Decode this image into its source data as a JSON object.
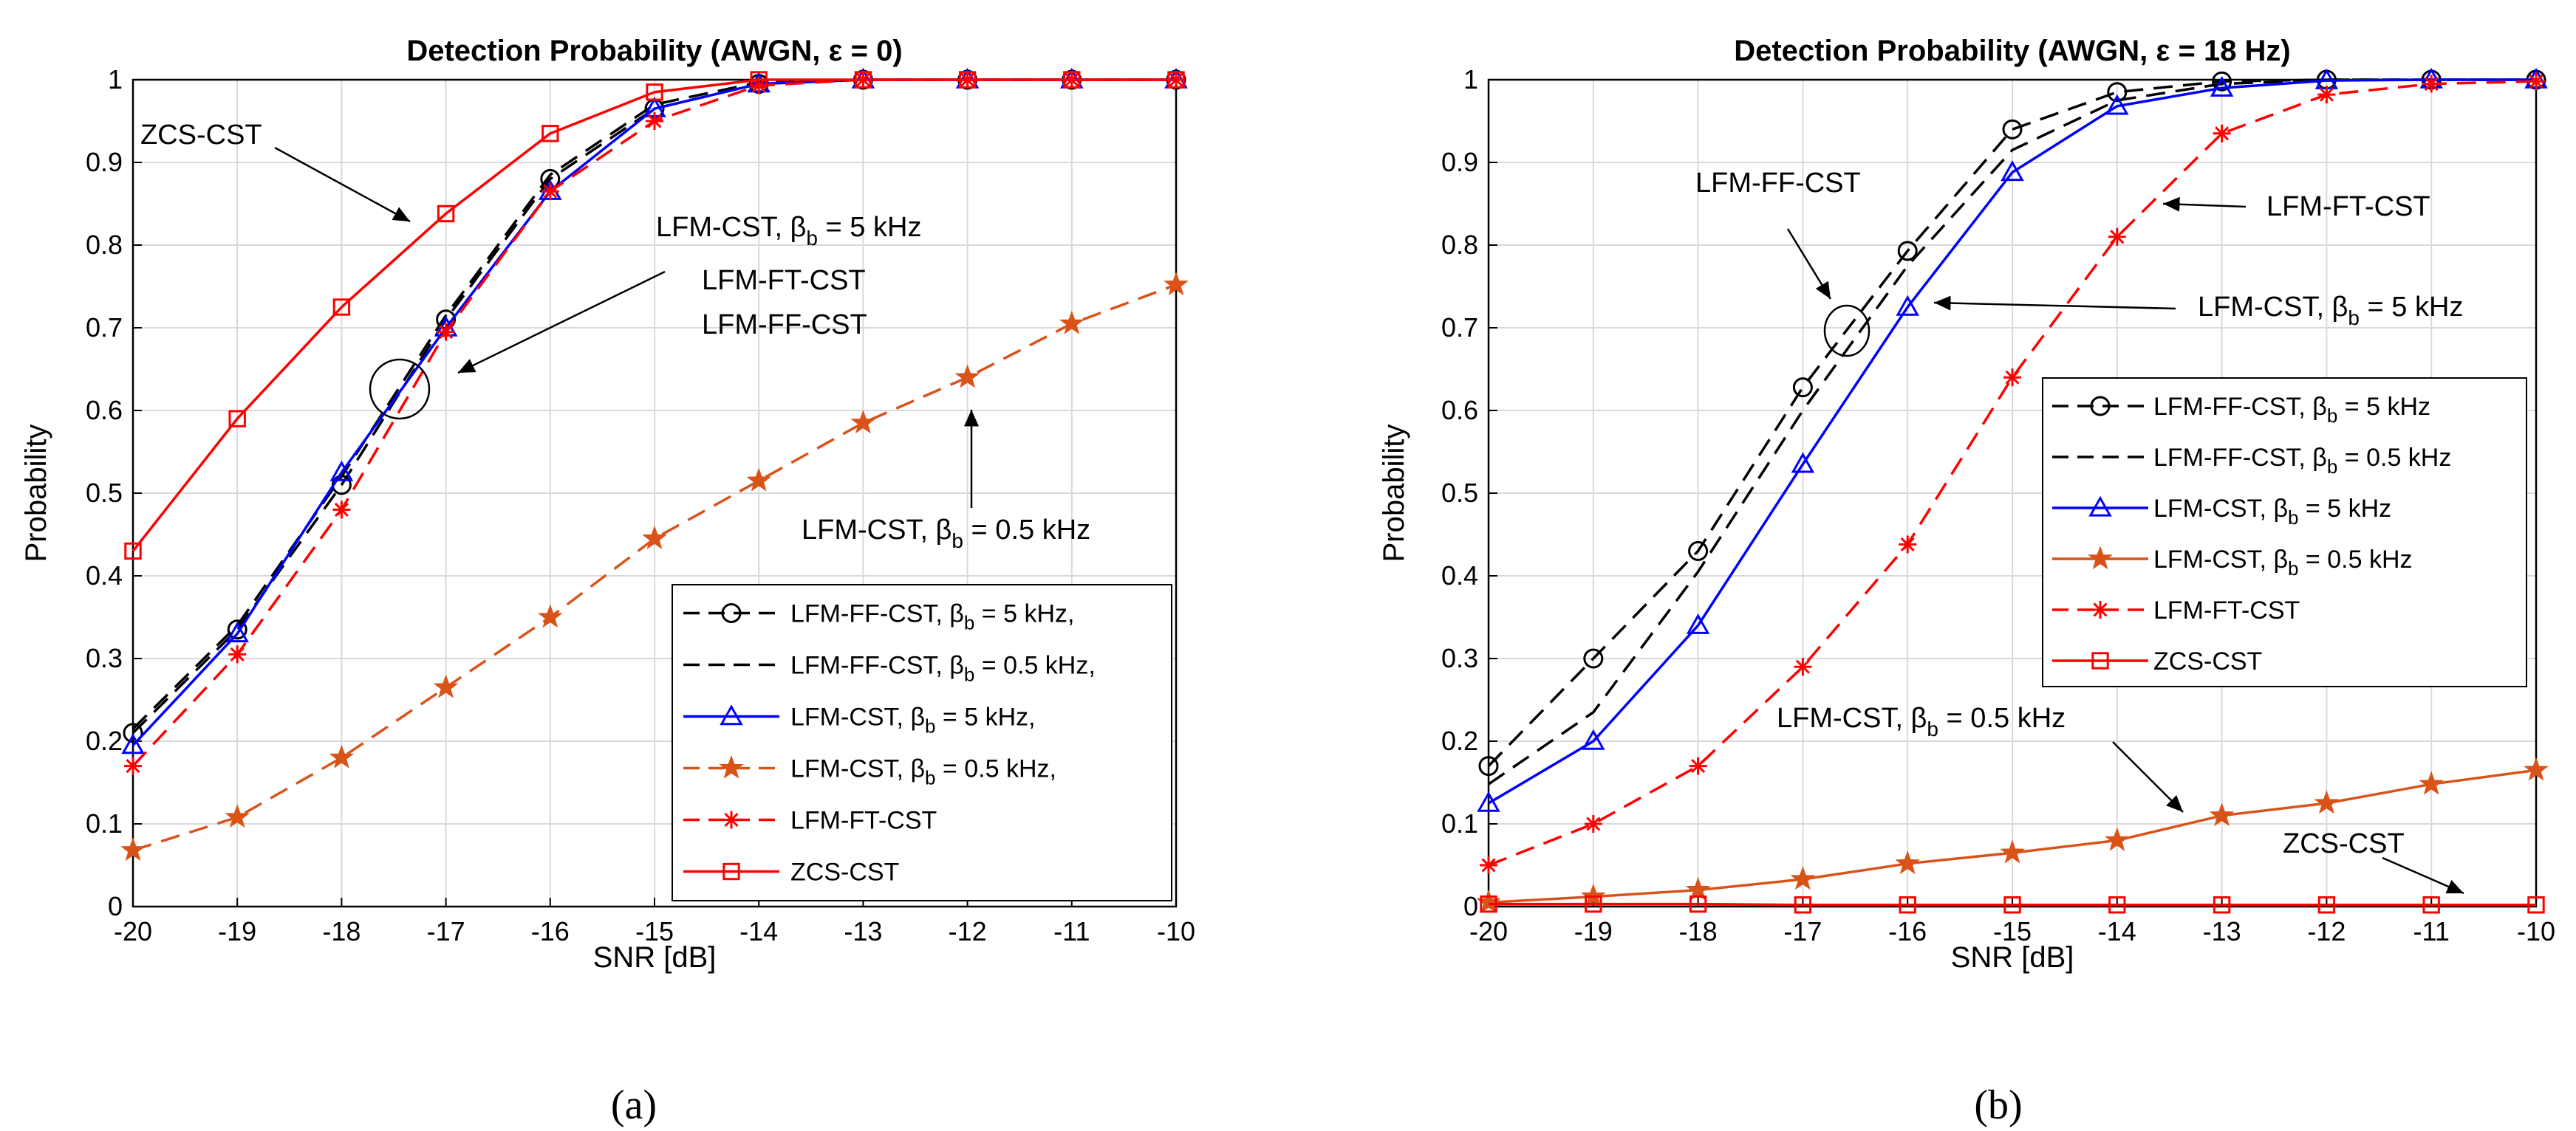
{
  "colors": {
    "black": "#000000",
    "blue": "#0000ff",
    "orange": "#d95319",
    "red": "#ff0000",
    "grid": "#d9d9d9"
  },
  "chart_data": [
    {
      "type": "line",
      "label": "(a)",
      "title": "Detection Probability  (AWGN, ε = 0)",
      "xlabel": "SNR [dB]",
      "ylabel": "Probability",
      "x": [
        -20,
        -19,
        -18,
        -17,
        -16,
        -15,
        -14,
        -13,
        -12,
        -11,
        -10
      ],
      "xlim": [
        -20,
        -10
      ],
      "ylim": [
        0,
        1
      ],
      "xticks": [
        "-20",
        "-19",
        "-18",
        "-17",
        "-16",
        "-15",
        "-14",
        "-13",
        "-12",
        "-11",
        "-10"
      ],
      "yticks": [
        "0",
        "0.1",
        "0.2",
        "0.3",
        "0.4",
        "0.5",
        "0.6",
        "0.7",
        "0.8",
        "0.9",
        "1"
      ],
      "grid": true,
      "legend_position": "bottom-right",
      "series": [
        {
          "name": "LFM-FF-CST, β",
          "sub": "b",
          "suffix": " = 5 kHz,",
          "color": "#000000",
          "dash": "dashed",
          "marker": "circle",
          "values": [
            0.21,
            0.335,
            0.51,
            0.71,
            0.88,
            0.965,
            0.995,
            1,
            1,
            1,
            1
          ]
        },
        {
          "name": "LFM-FF-CST, β",
          "sub": "b",
          "suffix": " = 0.5 kHz,",
          "color": "#000000",
          "dash": "dashed",
          "marker": "none",
          "values": [
            0.215,
            0.34,
            0.52,
            0.715,
            0.885,
            0.97,
            0.997,
            1,
            1,
            1,
            1
          ]
        },
        {
          "name": "LFM-CST, β",
          "sub": "b",
          "suffix": " = 5 kHz,",
          "color": "#0000ff",
          "dash": "solid",
          "marker": "triangle",
          "values": [
            0.195,
            0.33,
            0.525,
            0.7,
            0.865,
            0.965,
            0.995,
            1,
            1,
            1,
            1
          ]
        },
        {
          "name": "LFM-CST, β",
          "sub": "b",
          "suffix": " = 0.5 kHz,",
          "color": "#d95319",
          "dash": "dashed",
          "marker": "star",
          "values": [
            0.068,
            0.108,
            0.18,
            0.265,
            0.35,
            0.445,
            0.515,
            0.585,
            0.64,
            0.705,
            0.752
          ]
        },
        {
          "name": "LFM-FT-CST",
          "sub": "",
          "suffix": "",
          "color": "#ff0000",
          "dash": "dashed",
          "marker": "asterisk",
          "values": [
            0.17,
            0.305,
            0.48,
            0.695,
            0.865,
            0.95,
            0.993,
            1,
            1,
            1,
            1
          ]
        },
        {
          "name": "ZCS-CST",
          "sub": "",
          "suffix": "",
          "color": "#ff0000",
          "dash": "solid",
          "marker": "square",
          "values": [
            0.43,
            0.59,
            0.725,
            0.838,
            0.935,
            0.985,
            1,
            1,
            1,
            1,
            1
          ]
        }
      ],
      "annotations": [
        {
          "text": "ZCS-CST"
        },
        {
          "text": "LFM-CST, β",
          "sub": "b",
          "suffix": " = 5 kHz"
        },
        {
          "text": "LFM-FT-CST"
        },
        {
          "text": "LFM-FF-CST"
        },
        {
          "text": "LFM-CST, β",
          "sub": "b",
          "suffix": " = 0.5 kHz"
        }
      ]
    },
    {
      "type": "line",
      "label": "(b)",
      "title": "Detection Probability  (AWGN, ε = 18 Hz)",
      "xlabel": "SNR [dB]",
      "ylabel": "Probability",
      "x": [
        -20,
        -19,
        -18,
        -17,
        -16,
        -15,
        -14,
        -13,
        -12,
        -11,
        -10
      ],
      "xlim": [
        -20,
        -10
      ],
      "ylim": [
        0,
        1
      ],
      "xticks": [
        "-20",
        "-19",
        "-18",
        "-17",
        "-16",
        "-15",
        "-14",
        "-13",
        "-12",
        "-11",
        "-10"
      ],
      "yticks": [
        "0",
        "0.1",
        "0.2",
        "0.3",
        "0.4",
        "0.5",
        "0.6",
        "0.7",
        "0.8",
        "0.9",
        "1"
      ],
      "grid": true,
      "legend_position": "middle-right",
      "series": [
        {
          "name": "LFM-FF-CST, β",
          "sub": "b",
          "suffix": " = 5 kHz",
          "color": "#000000",
          "dash": "dashed",
          "marker": "circle",
          "values": [
            0.17,
            0.3,
            0.43,
            0.628,
            0.793,
            0.94,
            0.985,
            0.998,
            1,
            1,
            1
          ]
        },
        {
          "name": "LFM-FF-CST, β",
          "sub": "b",
          "suffix": " = 0.5 kHz",
          "color": "#000000",
          "dash": "dashed",
          "marker": "none",
          "values": [
            0.148,
            0.235,
            0.405,
            0.6,
            0.775,
            0.915,
            0.975,
            0.995,
            1,
            1,
            1
          ]
        },
        {
          "name": "LFM-CST, β",
          "sub": "b",
          "suffix": " = 5 kHz",
          "color": "#0000ff",
          "dash": "solid",
          "marker": "triangle",
          "values": [
            0.125,
            0.2,
            0.34,
            0.535,
            0.725,
            0.888,
            0.968,
            0.99,
            0.999,
            1,
            1
          ]
        },
        {
          "name": "LFM-CST, β",
          "sub": "b",
          "suffix": " = 0.5 kHz",
          "color": "#d95319",
          "dash": "solid",
          "marker": "star",
          "values": [
            0.005,
            0.012,
            0.02,
            0.033,
            0.052,
            0.065,
            0.08,
            0.11,
            0.125,
            0.148,
            0.165
          ]
        },
        {
          "name": "LFM-FT-CST",
          "sub": "",
          "suffix": "",
          "color": "#ff0000",
          "dash": "dashed",
          "marker": "asterisk",
          "values": [
            0.05,
            0.1,
            0.17,
            0.29,
            0.438,
            0.64,
            0.81,
            0.935,
            0.982,
            0.995,
            0.998
          ]
        },
        {
          "name": "ZCS-CST",
          "sub": "",
          "suffix": "",
          "color": "#ff0000",
          "dash": "solid",
          "marker": "square",
          "values": [
            0.003,
            0.003,
            0.003,
            0.002,
            0.002,
            0.002,
            0.002,
            0.002,
            0.002,
            0.002,
            0.002
          ]
        }
      ],
      "annotations": [
        {
          "text": "LFM-FF-CST"
        },
        {
          "text": "LFM-FT-CST"
        },
        {
          "text": "LFM-CST, β",
          "sub": "b",
          "suffix": " = 5 kHz"
        },
        {
          "text": "LFM-CST, β",
          "sub": "b",
          "suffix": " = 0.5 kHz"
        },
        {
          "text": "ZCS-CST"
        }
      ]
    }
  ]
}
